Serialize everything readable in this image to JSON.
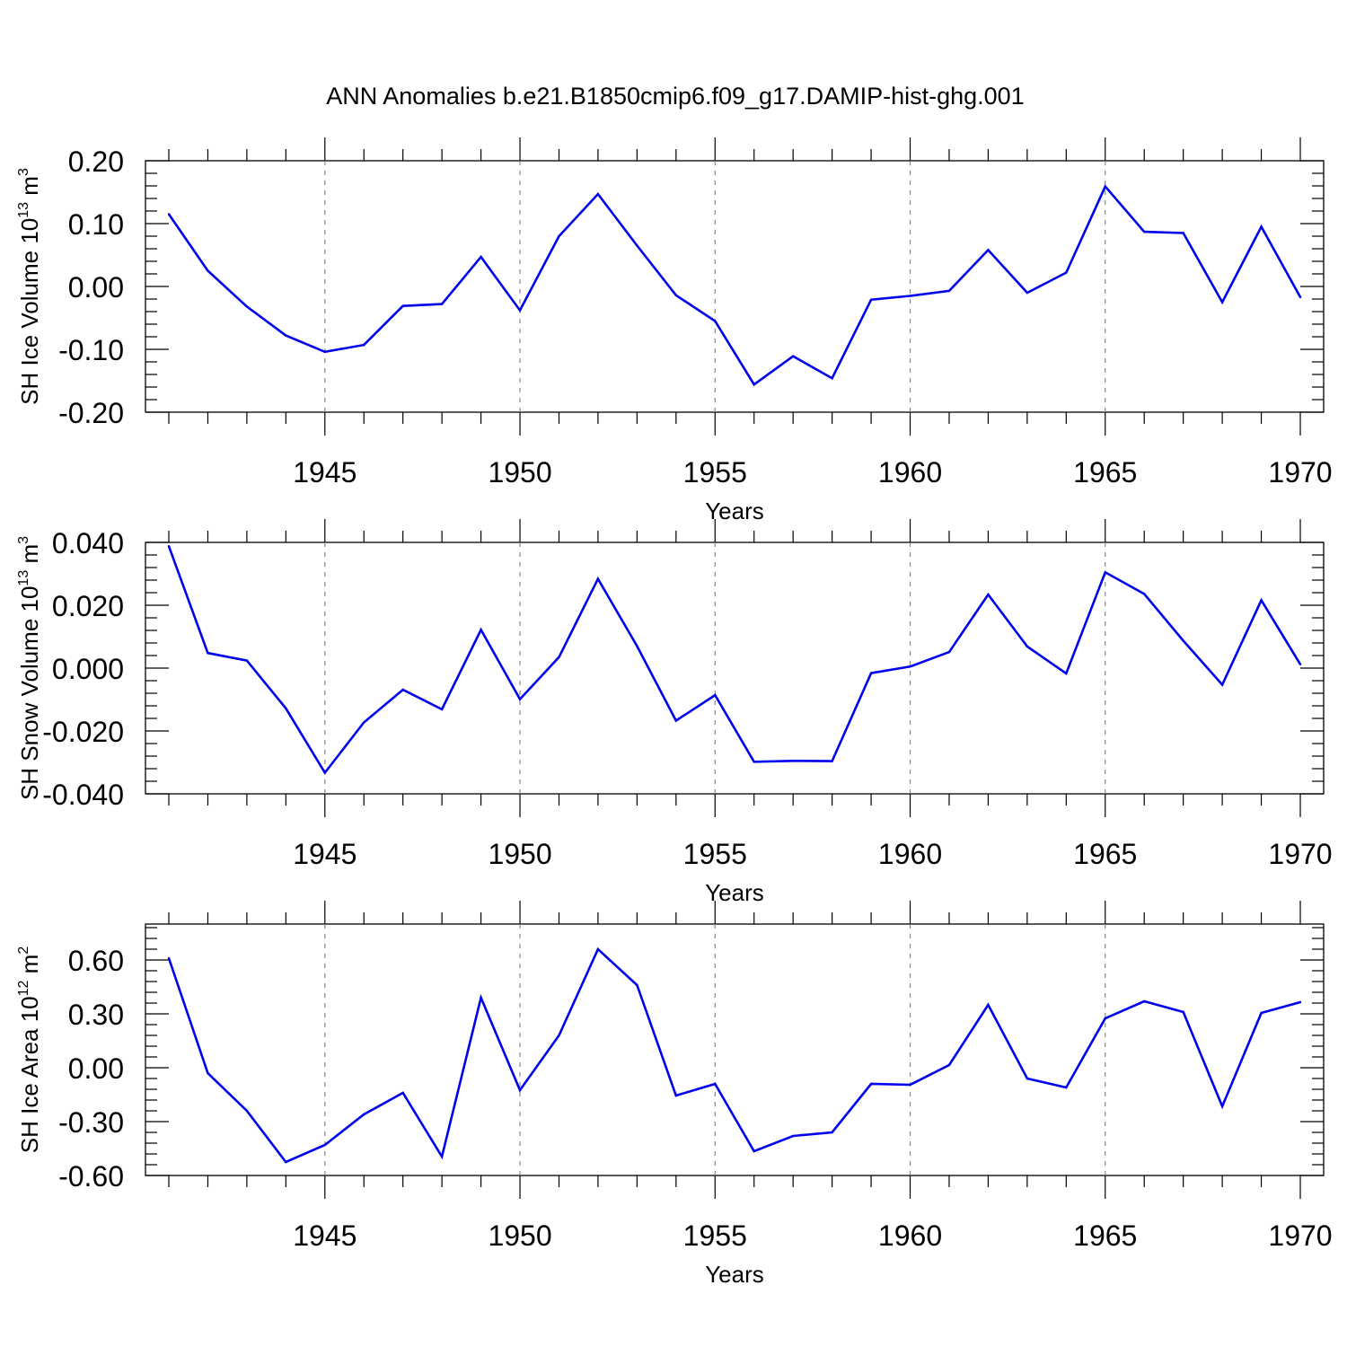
{
  "figure": {
    "title": "ANN Anomalies b.e21.B1850cmip6.f09_g17.DAMIP-hist-ghg.001"
  },
  "style": {
    "line_color": "#0000ee",
    "axis_color": "#000000",
    "grid_color": "#888888"
  },
  "chart_data": [
    {
      "type": "line",
      "title": "ANN Anomalies b.e21.B1850cmip6.f09_g17.DAMIP-hist-ghg.001",
      "xlabel": "Years",
      "ylabel_prefix": "SH Ice Volume 10",
      "ylabel_exp": "13",
      "ylabel_unit": " m",
      "ylabel_unit_exp": "3",
      "xlim": [
        1941,
        1970
      ],
      "ylim": [
        -0.2,
        0.2
      ],
      "xticks": [
        1945,
        1950,
        1955,
        1960,
        1965,
        1970
      ],
      "xtick_labels": [
        "1945",
        "1950",
        "1955",
        "1960",
        "1965",
        "1970"
      ],
      "yticks": [
        -0.2,
        -0.1,
        0.0,
        0.1,
        0.2
      ],
      "ytick_labels": [
        "-0.20",
        "-0.10",
        "0.00",
        "0.10",
        "0.20"
      ],
      "grid": "vertical dashed at major x ticks",
      "x": [
        1941,
        1942,
        1943,
        1944,
        1945,
        1946,
        1947,
        1948,
        1949,
        1950,
        1951,
        1952,
        1953,
        1954,
        1955,
        1956,
        1957,
        1958,
        1959,
        1960,
        1961,
        1962,
        1963,
        1964,
        1965,
        1966,
        1967,
        1968,
        1969,
        1970
      ],
      "values": [
        0.115,
        0.025,
        -0.032,
        -0.078,
        -0.104,
        -0.093,
        -0.031,
        -0.028,
        0.047,
        -0.038,
        0.08,
        0.147,
        0.065,
        -0.014,
        -0.055,
        -0.156,
        -0.111,
        -0.146,
        -0.021,
        -0.015,
        -0.007,
        0.058,
        -0.01,
        0.022,
        0.159,
        0.087,
        0.085,
        -0.025,
        0.095,
        -0.017
      ]
    },
    {
      "type": "line",
      "xlabel": "Years",
      "ylabel_prefix": "SH Snow Volume 10",
      "ylabel_exp": "13",
      "ylabel_unit": " m",
      "ylabel_unit_exp": "3",
      "xlim": [
        1941,
        1970
      ],
      "ylim": [
        -0.04,
        0.04
      ],
      "xticks": [
        1945,
        1950,
        1955,
        1960,
        1965,
        1970
      ],
      "xtick_labels": [
        "1945",
        "1950",
        "1955",
        "1960",
        "1965",
        "1970"
      ],
      "yticks": [
        -0.04,
        -0.02,
        0.0,
        0.02,
        0.04
      ],
      "ytick_labels": [
        "-0.040",
        "-0.020",
        "0.000",
        "0.020",
        "0.040"
      ],
      "grid": "vertical dashed at major x ticks",
      "x": [
        1941,
        1942,
        1943,
        1944,
        1945,
        1946,
        1947,
        1948,
        1949,
        1950,
        1951,
        1952,
        1953,
        1954,
        1955,
        1956,
        1957,
        1958,
        1959,
        1960,
        1961,
        1962,
        1963,
        1964,
        1965,
        1966,
        1967,
        1968,
        1969,
        1970
      ],
      "values": [
        0.0388,
        0.0048,
        0.0024,
        -0.0128,
        -0.0333,
        -0.0173,
        -0.0069,
        -0.0131,
        0.0122,
        -0.0099,
        0.0035,
        0.0284,
        0.007,
        -0.0167,
        -0.0086,
        -0.0298,
        -0.0295,
        -0.0296,
        -0.0016,
        0.0005,
        0.0051,
        0.0234,
        0.0069,
        -0.0017,
        0.0305,
        0.0236,
        0.0087,
        -0.0053,
        0.0216,
        0.0012
      ]
    },
    {
      "type": "line",
      "xlabel": "Years",
      "ylabel_prefix": "SH Ice Area 10",
      "ylabel_exp": "12",
      "ylabel_unit": " m",
      "ylabel_unit_exp": "2",
      "xlim": [
        1941,
        1970
      ],
      "ylim": [
        -0.6,
        0.8
      ],
      "xticks": [
        1945,
        1950,
        1955,
        1960,
        1965,
        1970
      ],
      "xtick_labels": [
        "1945",
        "1950",
        "1955",
        "1960",
        "1965",
        "1970"
      ],
      "yticks": [
        -0.6,
        -0.3,
        0.0,
        0.3,
        0.6
      ],
      "ytick_labels": [
        "-0.60",
        "-0.30",
        "0.00",
        "0.30",
        "0.60"
      ],
      "grid": "vertical dashed at major x ticks",
      "x": [
        1941,
        1942,
        1943,
        1944,
        1945,
        1946,
        1947,
        1948,
        1949,
        1950,
        1951,
        1952,
        1953,
        1954,
        1955,
        1956,
        1957,
        1958,
        1959,
        1960,
        1961,
        1962,
        1963,
        1964,
        1965,
        1966,
        1967,
        1968,
        1969,
        1970
      ],
      "values": [
        0.61,
        -0.03,
        -0.24,
        -0.525,
        -0.43,
        -0.26,
        -0.14,
        -0.495,
        0.39,
        -0.125,
        0.18,
        0.66,
        0.46,
        -0.155,
        -0.09,
        -0.465,
        -0.38,
        -0.36,
        -0.09,
        -0.095,
        0.015,
        0.35,
        -0.06,
        -0.11,
        0.275,
        0.37,
        0.31,
        -0.215,
        0.305,
        0.365
      ]
    }
  ]
}
